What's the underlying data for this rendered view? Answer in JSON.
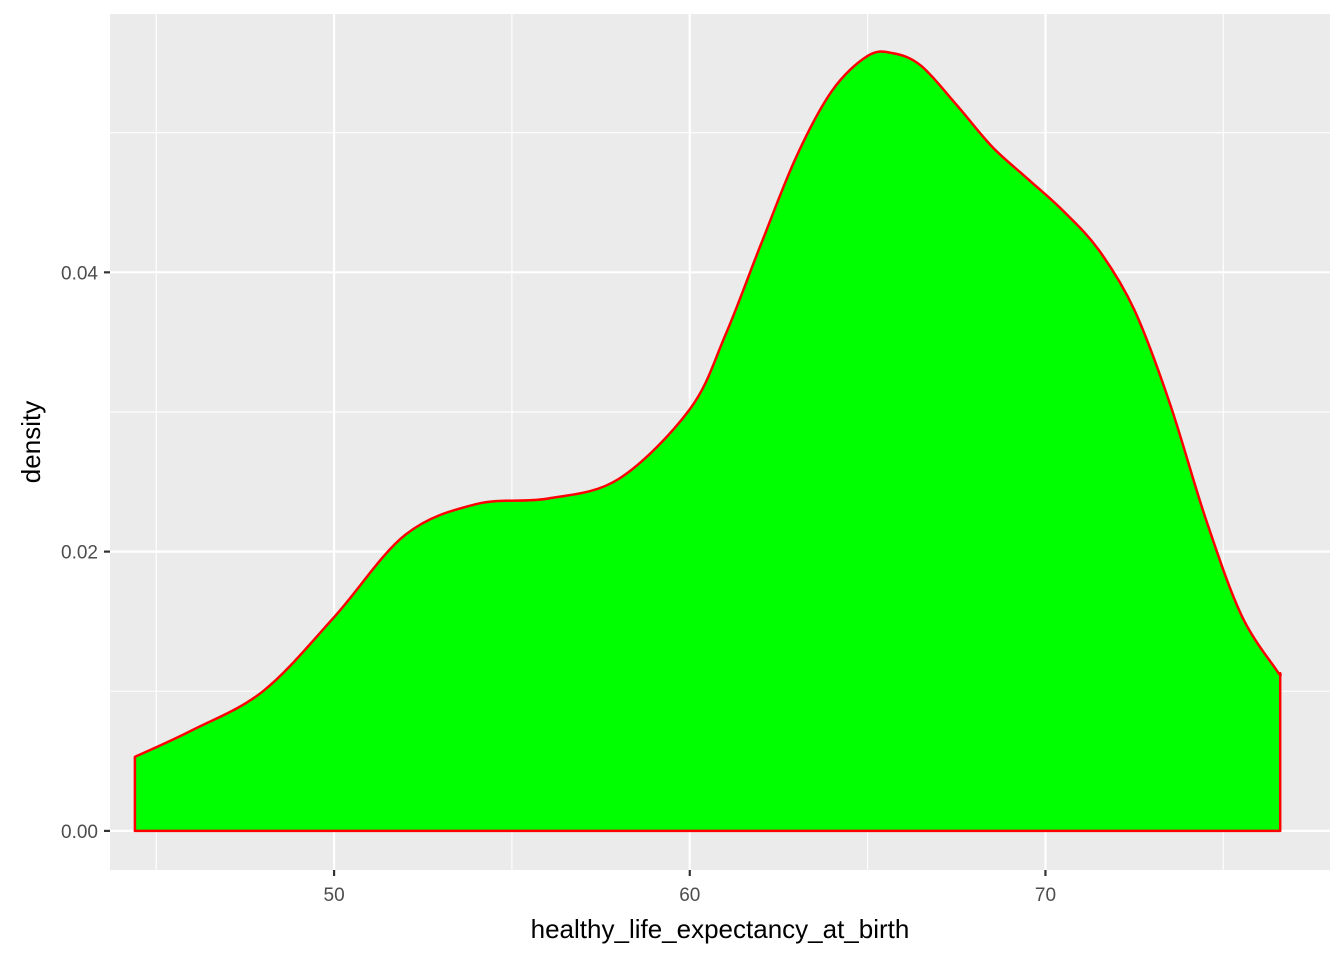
{
  "chart_data": {
    "type": "area",
    "title": "",
    "xlabel": "healthy_life_expectancy_at_birth",
    "ylabel": "density",
    "xlim": [
      43.7,
      78.0
    ],
    "ylim": [
      -0.0028,
      0.0585
    ],
    "x_ticks": [
      50,
      60,
      70
    ],
    "x_tick_labels": [
      "50",
      "60",
      "70"
    ],
    "x_minor_ticks": [
      45,
      55,
      65,
      75
    ],
    "y_ticks": [
      0.0,
      0.02,
      0.04
    ],
    "y_tick_labels": [
      "0.00",
      "0.02",
      "0.04"
    ],
    "y_minor_ticks": [
      0.01,
      0.03,
      0.05
    ],
    "grid": true,
    "colors": {
      "fill": "#00ff00",
      "outline": "#ff0000",
      "panel": "#ebebeb",
      "grid": "#ffffff"
    },
    "series": [
      {
        "x": [
          44.4,
          46.0,
          48.0,
          50.0,
          52.0,
          54.0,
          56.0,
          58.0,
          60.0,
          61.0,
          62.0,
          63.0,
          64.0,
          65.0,
          65.7,
          66.5,
          67.5,
          68.5,
          69.5,
          70.5,
          71.5,
          72.5,
          73.5,
          74.5,
          75.5,
          76.5,
          76.6
        ],
        "y": [
          0.0053,
          0.0072,
          0.01,
          0.0153,
          0.0212,
          0.0234,
          0.0238,
          0.0252,
          0.0302,
          0.0355,
          0.042,
          0.0483,
          0.053,
          0.0555,
          0.0557,
          0.0548,
          0.052,
          0.049,
          0.0467,
          0.0444,
          0.0416,
          0.0373,
          0.0306,
          0.0224,
          0.0155,
          0.0115,
          0.0113
        ]
      }
    ]
  }
}
